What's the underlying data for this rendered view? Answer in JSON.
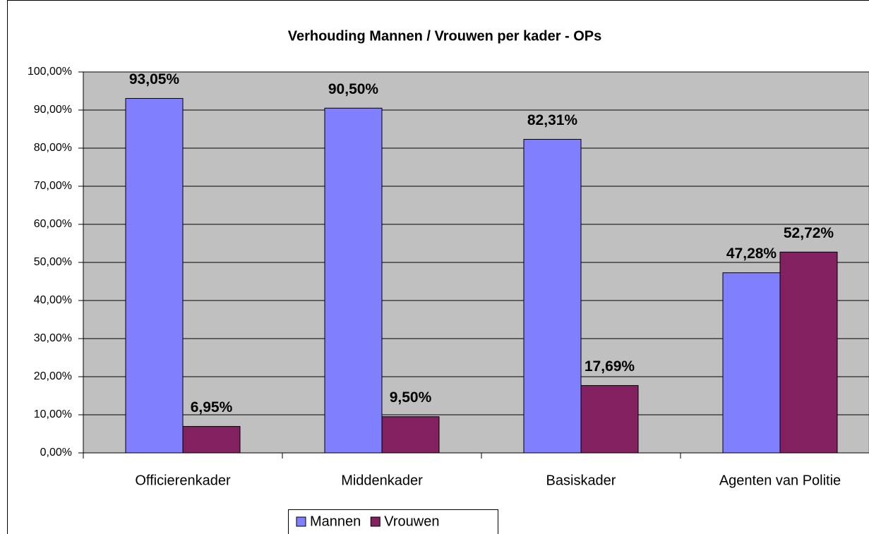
{
  "chart_data": {
    "type": "bar",
    "title": "Verhouding Mannen / Vrouwen per kader - OPs",
    "categories": [
      "Officierenkader",
      "Middenkader",
      "Basiskader",
      "Agenten van Politie"
    ],
    "series": [
      {
        "name": "Mannen",
        "color": "#8080ff",
        "values": [
          93.05,
          90.5,
          82.31,
          47.28
        ],
        "value_labels": [
          "93,05%",
          "90,50%",
          "82,31%",
          "47,28%"
        ]
      },
      {
        "name": "Vrouwen",
        "color": "#822060",
        "values": [
          6.95,
          9.5,
          17.69,
          52.72
        ],
        "value_labels": [
          "6,95%",
          "9,50%",
          "17,69%",
          "52,72%"
        ]
      }
    ],
    "ylim": [
      0,
      100
    ],
    "yticks": [
      {
        "value": 0,
        "label": "0,00%"
      },
      {
        "value": 10,
        "label": "10,00%"
      },
      {
        "value": 20,
        "label": "20,00%"
      },
      {
        "value": 30,
        "label": "30,00%"
      },
      {
        "value": 40,
        "label": "40,00%"
      },
      {
        "value": 50,
        "label": "50,00%"
      },
      {
        "value": 60,
        "label": "60,00%"
      },
      {
        "value": 70,
        "label": "70,00%"
      },
      {
        "value": 80,
        "label": "80,00%"
      },
      {
        "value": 90,
        "label": "90,00%"
      },
      {
        "value": 100,
        "label": "100,00%"
      }
    ],
    "grid": true,
    "legend": "bottom",
    "plot_background": "#c0c0c0"
  }
}
